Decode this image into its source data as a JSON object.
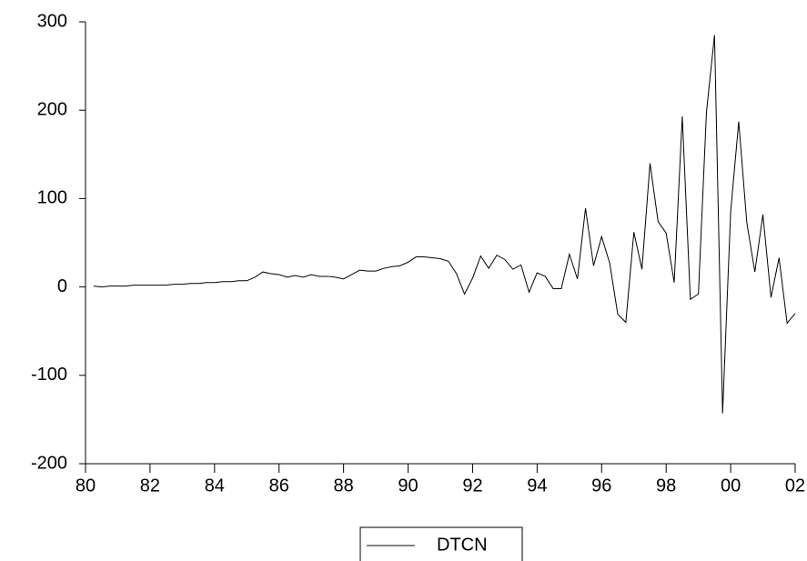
{
  "chart_data": {
    "type": "line",
    "x": [
      1980.25,
      1980.5,
      1980.75,
      1981,
      1981.25,
      1981.5,
      1981.75,
      1982,
      1982.25,
      1982.5,
      1982.75,
      1983,
      1983.25,
      1983.5,
      1983.75,
      1984,
      1984.25,
      1984.5,
      1984.75,
      1985,
      1985.25,
      1985.5,
      1985.75,
      1986,
      1986.25,
      1986.5,
      1986.75,
      1987,
      1987.25,
      1987.5,
      1987.75,
      1988,
      1988.25,
      1988.5,
      1988.75,
      1989,
      1989.25,
      1989.5,
      1989.75,
      1990,
      1990.25,
      1990.5,
      1990.75,
      1991,
      1991.25,
      1991.5,
      1991.75,
      1992,
      1992.25,
      1992.5,
      1992.75,
      1993,
      1993.25,
      1993.5,
      1993.75,
      1994,
      1994.25,
      1994.5,
      1994.75,
      1995,
      1995.25,
      1995.5,
      1995.75,
      1996,
      1996.25,
      1996.5,
      1996.75,
      1997,
      1997.25,
      1997.5,
      1997.75,
      1998,
      1998.25,
      1998.5,
      1998.75,
      1999,
      1999.25,
      1999.5,
      1999.75,
      2000,
      2000.25,
      2000.5,
      2000.75,
      2001,
      2001.25,
      2001.5,
      2001.75,
      2002
    ],
    "series": [
      {
        "name": "DTCN",
        "color": "#000000",
        "values": [
          1,
          0,
          1,
          1,
          1,
          2,
          2,
          2,
          2,
          2,
          3,
          3,
          4,
          4,
          5,
          5,
          6,
          6,
          7,
          7,
          11,
          17,
          15,
          14,
          11,
          13,
          11,
          14,
          12,
          12,
          11,
          9,
          14,
          19,
          18,
          18,
          21,
          23,
          24,
          28,
          34,
          34,
          33,
          32,
          29,
          15,
          -8,
          10,
          35,
          21,
          36,
          31,
          20,
          25,
          -6,
          16,
          12,
          -2,
          -2,
          37,
          9,
          89,
          24,
          57,
          27,
          -31,
          -40,
          62,
          20,
          140,
          74,
          61,
          5,
          193,
          -14,
          -8,
          198,
          285,
          -143,
          85,
          187,
          73,
          17,
          82,
          -12,
          33,
          -41,
          -30
        ]
      }
    ],
    "xlim": [
      1980,
      2002
    ],
    "xticks": [
      {
        "value": 1980,
        "label": "80"
      },
      {
        "value": 1982,
        "label": "82"
      },
      {
        "value": 1984,
        "label": "84"
      },
      {
        "value": 1986,
        "label": "86"
      },
      {
        "value": 1988,
        "label": "88"
      },
      {
        "value": 1990,
        "label": "90"
      },
      {
        "value": 1992,
        "label": "92"
      },
      {
        "value": 1994,
        "label": "94"
      },
      {
        "value": 1996,
        "label": "96"
      },
      {
        "value": 1998,
        "label": "98"
      },
      {
        "value": 2000,
        "label": "00"
      },
      {
        "value": 2002,
        "label": "02"
      }
    ],
    "ylim": [
      -200,
      300
    ],
    "yticks": [
      -200,
      -100,
      0,
      100,
      200,
      300
    ],
    "legend": "bottom"
  }
}
